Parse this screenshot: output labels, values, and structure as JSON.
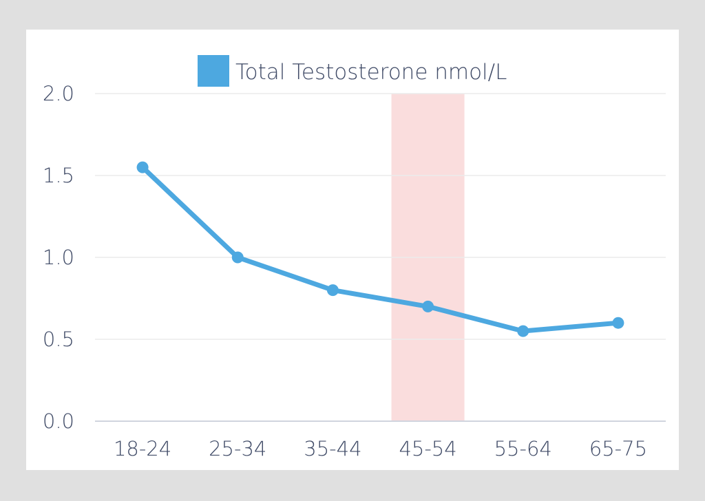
{
  "chart_data": {
    "type": "line",
    "title": "",
    "xlabel": "",
    "ylabel": "",
    "categories": [
      "18-24",
      "25-34",
      "35-44",
      "45-54",
      "55-64",
      "65-75"
    ],
    "series": [
      {
        "name": "Total Testosterone nmol/L",
        "color": "#4da8e0",
        "values": [
          1.55,
          1.0,
          0.8,
          0.7,
          0.55,
          0.6
        ]
      }
    ],
    "ylim": [
      0,
      2.0
    ],
    "yticks": [
      "0.0",
      "0.5",
      "1.0",
      "1.5",
      "2.0"
    ],
    "grid": true,
    "legend_position": "top",
    "highlight_band": {
      "category": "45-54",
      "color": "#fadddd"
    }
  },
  "legend": {
    "label": "Total Testosterone nmol/L",
    "swatch_color": "#4da8e0"
  },
  "colors": {
    "background": "#e0e0e0",
    "card": "#ffffff",
    "line": "#4da8e0",
    "grid": "#ebebeb",
    "axis": "#d0d4de",
    "text": "#3f4a66",
    "band": "#fadddd"
  }
}
